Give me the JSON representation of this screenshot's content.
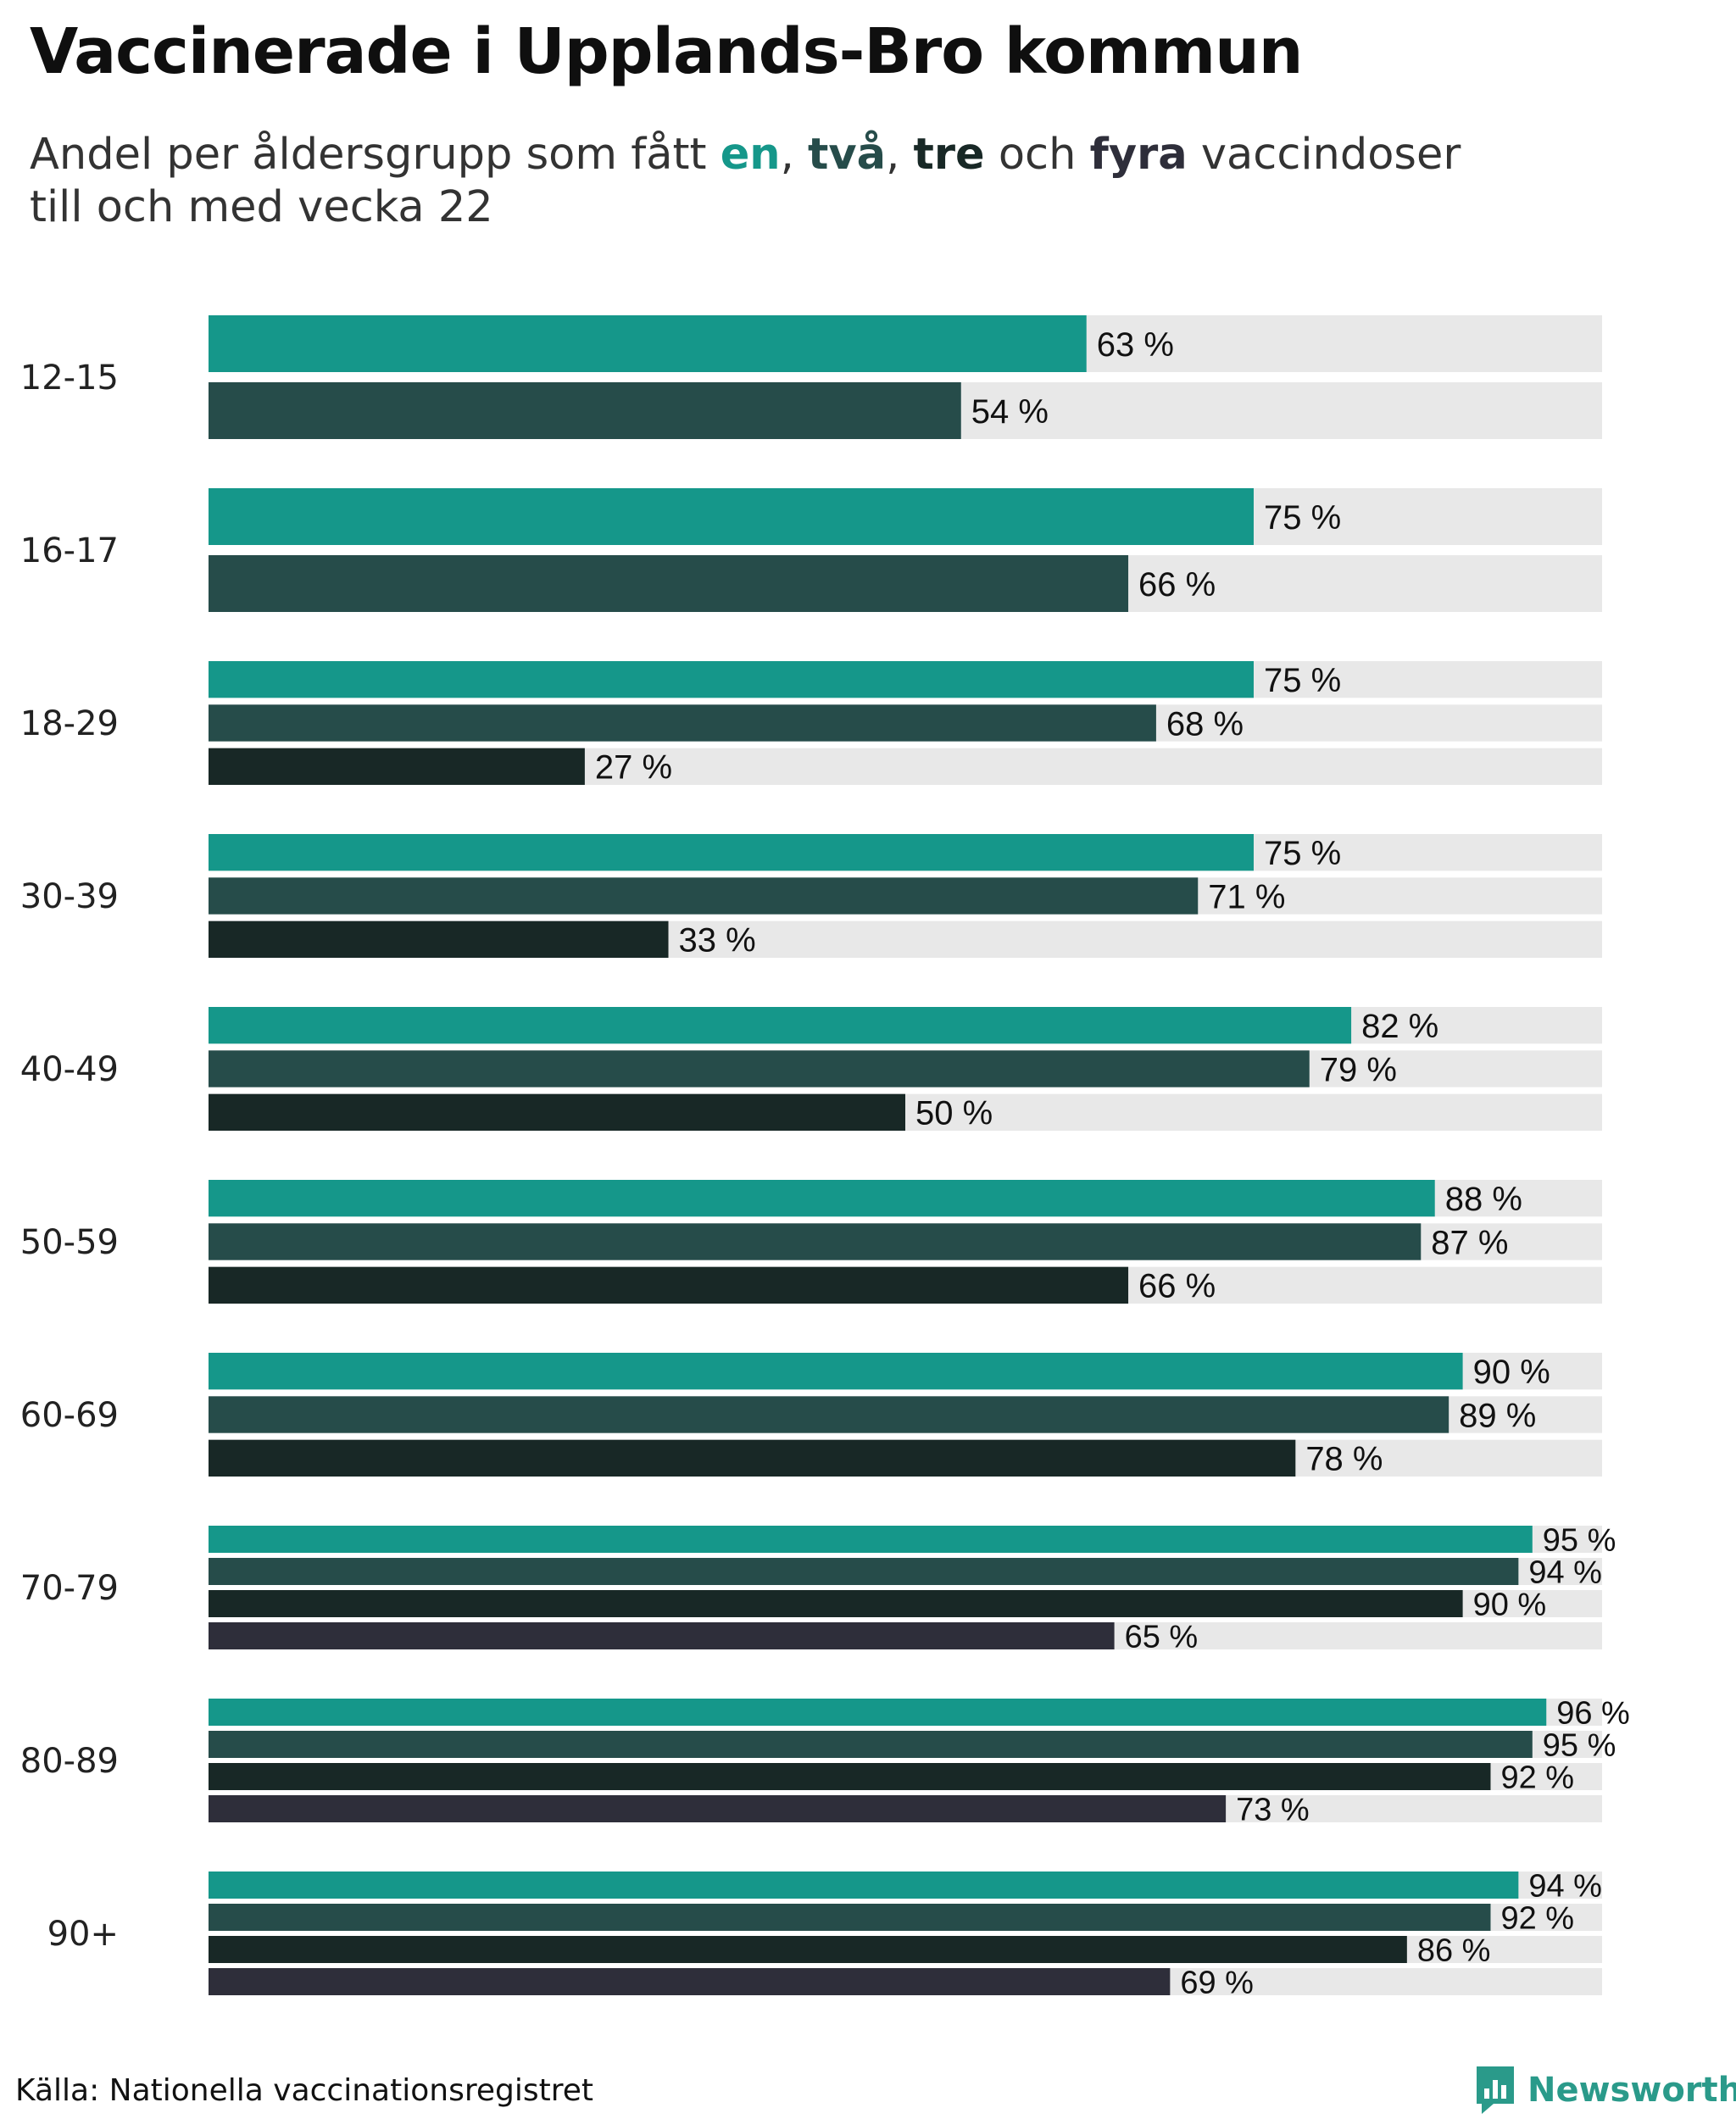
{
  "title": "Vaccinerade i Upplands-Bro kommun",
  "subtitle": {
    "prefix": "Andel per åldersgrupp som fått ",
    "dose1": "en",
    "sep1": ", ",
    "dose2": "två",
    "sep2": ", ",
    "dose3": "tre",
    "sep3": " och ",
    "dose4": "fyra",
    "suffix": " vaccindoser",
    "line2": "till och med vecka 22"
  },
  "colors": {
    "dose1": "#15978a",
    "dose2": "#264c4a",
    "dose3": "#182826",
    "dose4": "#2e2e3a",
    "track": "#e8e8e8"
  },
  "chart_data": {
    "type": "bar",
    "orientation": "horizontal",
    "xlim": [
      0,
      100
    ],
    "unit": "%",
    "categories": [
      "12-15",
      "16-17",
      "18-29",
      "30-39",
      "40-49",
      "50-59",
      "60-69",
      "70-79",
      "80-89",
      "90+"
    ],
    "series": [
      {
        "name": "en",
        "values": [
          63,
          75,
          75,
          75,
          82,
          88,
          90,
          95,
          96,
          94
        ]
      },
      {
        "name": "två",
        "values": [
          54,
          66,
          68,
          71,
          79,
          87,
          89,
          94,
          95,
          92
        ]
      },
      {
        "name": "tre",
        "values": [
          null,
          null,
          27,
          33,
          50,
          66,
          78,
          90,
          92,
          86
        ]
      },
      {
        "name": "fyra",
        "values": [
          null,
          null,
          null,
          null,
          null,
          null,
          null,
          65,
          73,
          69
        ]
      }
    ]
  },
  "footer": {
    "source": "Källa: Nationella vaccinationsregistret",
    "brand": "Newsworthy"
  }
}
